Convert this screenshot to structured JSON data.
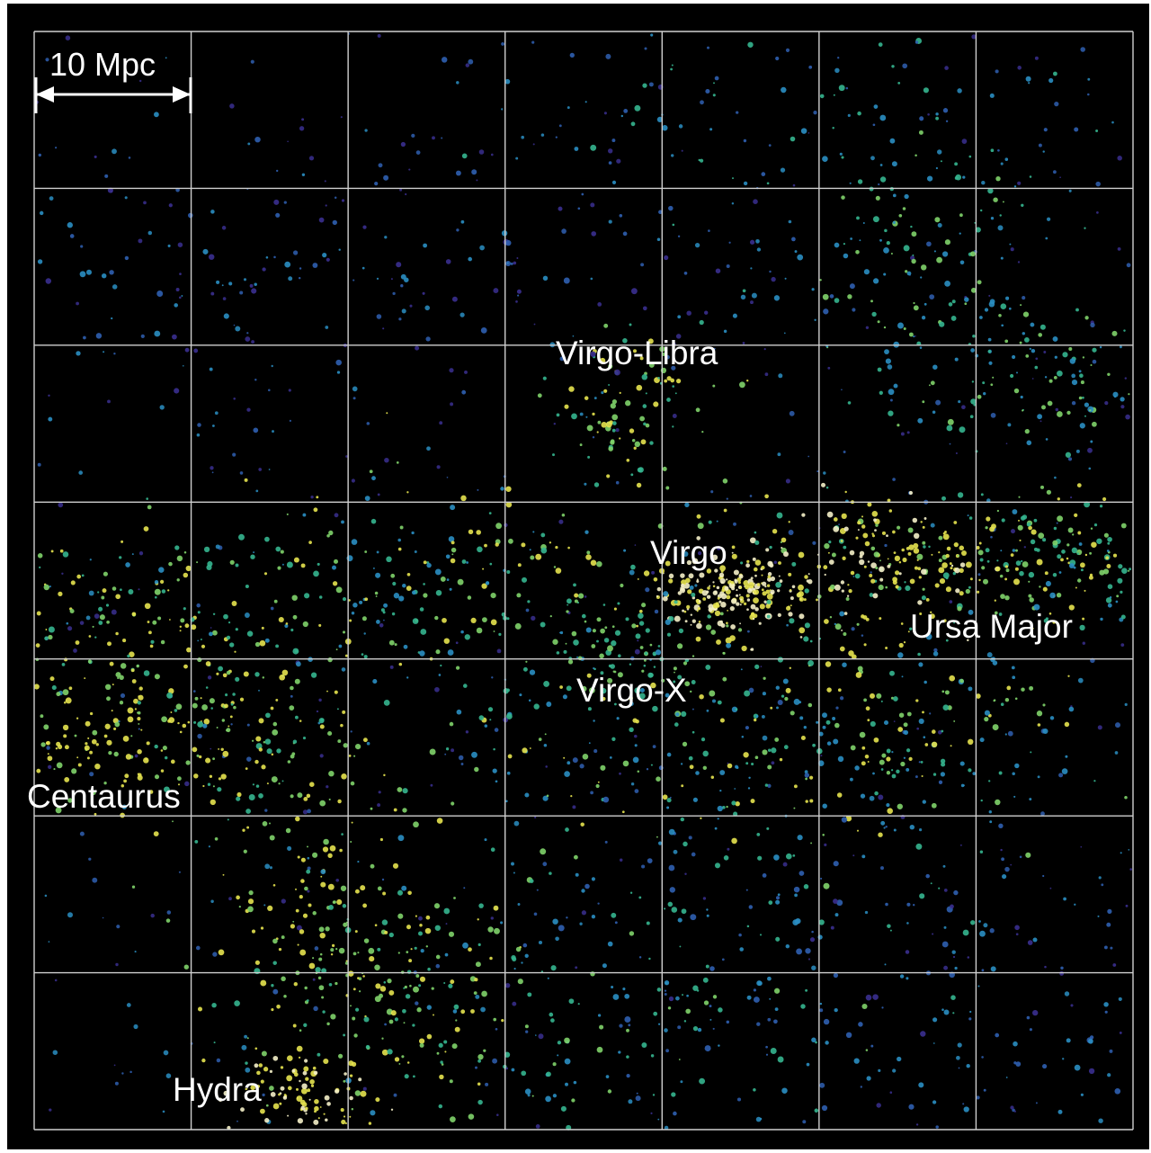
{
  "scale_bar": {
    "label": "10 Mpc"
  },
  "regions": [
    {
      "id": "virgo-libra",
      "label": "Virgo-Libra"
    },
    {
      "id": "virgo",
      "label": "Virgo"
    },
    {
      "id": "ursa-major",
      "label": "Ursa Major"
    },
    {
      "id": "virgo-x",
      "label": "Virgo-X"
    },
    {
      "id": "centaurus",
      "label": "Centaurus"
    },
    {
      "id": "hydra",
      "label": "Hydra"
    }
  ],
  "grid": {
    "columns": 7,
    "rows": 7
  },
  "colors": {
    "background": "#000000",
    "grid_line": "#cfcfcf",
    "galaxy_palette": [
      "#3a2f8f",
      "#2f5fb0",
      "#2a8ec2",
      "#35b58f",
      "#7fd36a",
      "#e6e34f",
      "#f4f0c8"
    ]
  }
}
